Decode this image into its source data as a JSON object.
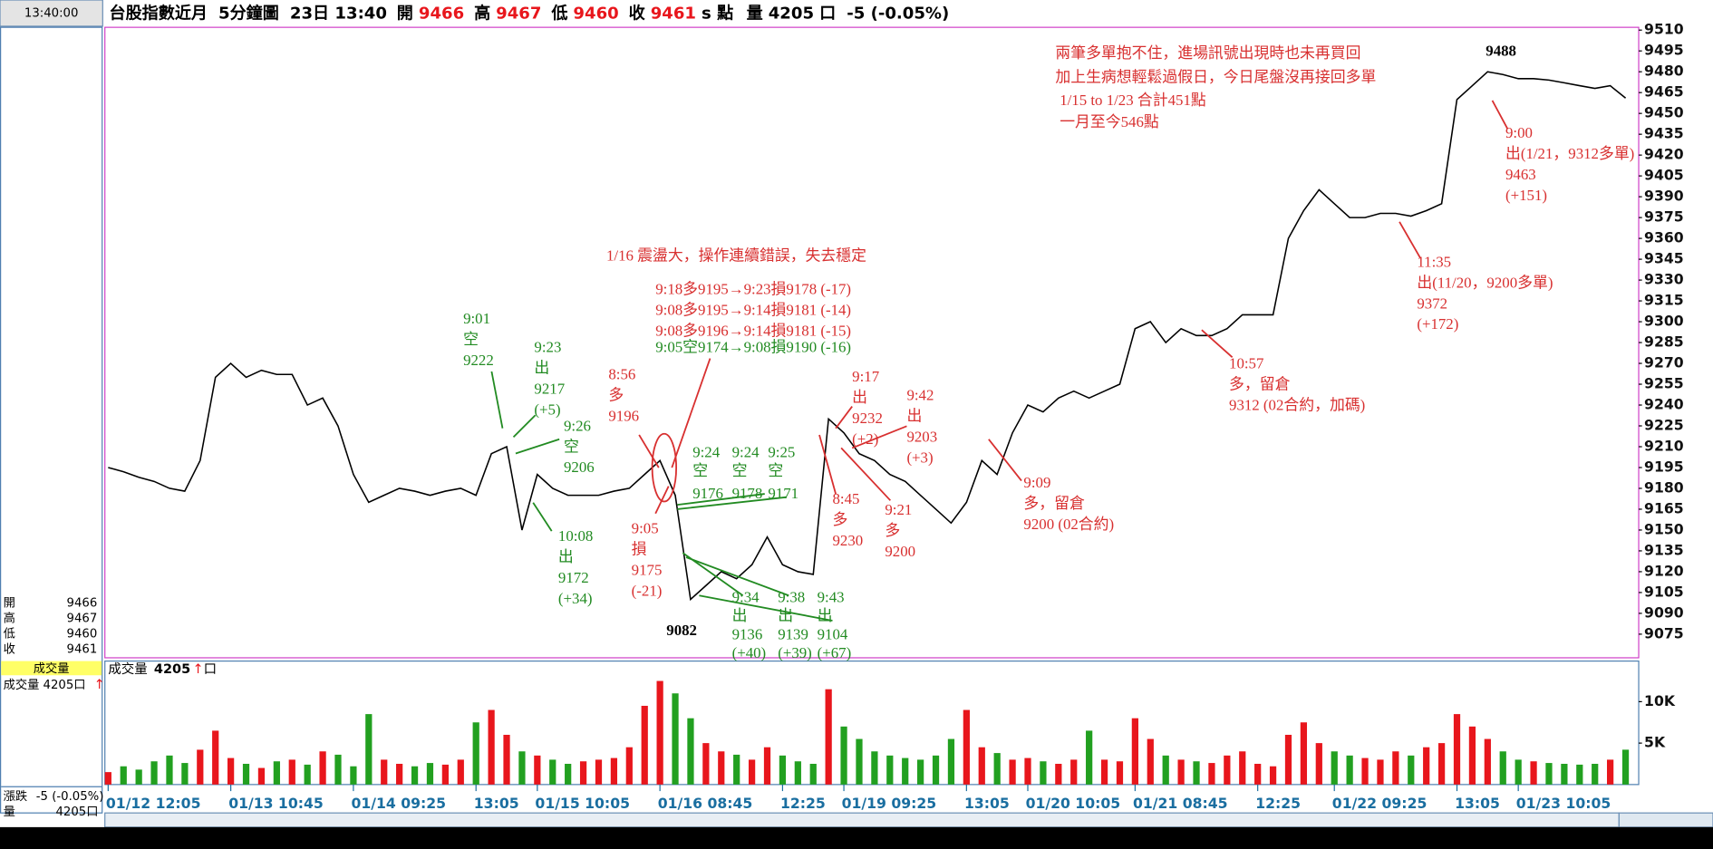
{
  "header": {
    "clock": "13:40:00",
    "title": "台股指數近月",
    "interval": "5分鐘圖",
    "time": "23日 13:40",
    "quotes": [
      {
        "label": "開",
        "value": "9466"
      },
      {
        "label": "高",
        "value": "9467"
      },
      {
        "label": "低",
        "value": "9460"
      },
      {
        "label": "收",
        "value": "9461"
      }
    ],
    "unit": "s 點",
    "volume": {
      "label": "量",
      "value": "4205",
      "unit": "口"
    },
    "change": "-5 (-0.05%)"
  },
  "side": {
    "ohlc": [
      [
        "開",
        "9466"
      ],
      [
        "高",
        "9467"
      ],
      [
        "低",
        "9460"
      ],
      [
        "收",
        "9461"
      ]
    ],
    "vol_title": "成交量",
    "vol_line": "成交量  4205口",
    "change_label": "漲跌",
    "change": "-5 (-0.05%)",
    "qty_label": "量",
    "qty": "4205口"
  },
  "volume_panel": {
    "label": "成交量",
    "value": "4205",
    "unit": "口"
  },
  "chart_data": [
    {
      "type": "line",
      "color": "#000000",
      "categories": [
        "01/12 12:05",
        null,
        null,
        null,
        null,
        null,
        null,
        null,
        "01/13 10:45",
        null,
        null,
        null,
        null,
        null,
        null,
        null,
        "01/14 09:25",
        null,
        null,
        null,
        null,
        null,
        null,
        null,
        "13:05",
        null,
        null,
        null,
        "01/15 10:05",
        null,
        null,
        null,
        null,
        null,
        null,
        null,
        "01/16 08:45",
        null,
        null,
        null,
        null,
        null,
        null,
        null,
        "12:25",
        null,
        null,
        null,
        "01/19 09:25",
        null,
        null,
        null,
        null,
        null,
        null,
        null,
        "13:05",
        null,
        null,
        null,
        "01/20 10:05",
        null,
        null,
        null,
        null,
        null,
        null,
        "01/21 08:45",
        null,
        null,
        null,
        null,
        null,
        null,
        null,
        "12:25",
        null,
        null,
        null,
        null,
        "01/22 09:25",
        null,
        null,
        null,
        null,
        null,
        null,
        null,
        "13:05",
        null,
        null,
        null,
        "01/23 10:05",
        null,
        null,
        null,
        null,
        null,
        null,
        null
      ],
      "values": [
        9195,
        9192,
        9188,
        9185,
        9180,
        9178,
        9200,
        9260,
        9270,
        9260,
        9265,
        9262,
        9262,
        9240,
        9245,
        9225,
        9190,
        9170,
        9175,
        9180,
        9178,
        9175,
        9178,
        9180,
        9175,
        9205,
        9210,
        9150,
        9190,
        9180,
        9175,
        9175,
        9175,
        9178,
        9180,
        9190,
        9200,
        9175,
        9100,
        9110,
        9120,
        9115,
        9125,
        9145,
        9125,
        9120,
        9118,
        9230,
        9220,
        9205,
        9200,
        9190,
        9185,
        9175,
        9165,
        9155,
        9170,
        9200,
        9190,
        9220,
        9240,
        9235,
        9245,
        9250,
        9245,
        9250,
        9255,
        9295,
        9300,
        9285,
        9295,
        9290,
        9290,
        9295,
        9305,
        9305,
        9305,
        9360,
        9380,
        9395,
        9385,
        9375,
        9375,
        9378,
        9378,
        9376,
        9380,
        9385,
        9460,
        9470,
        9480,
        9478,
        9475,
        9475,
        9474,
        9472,
        9470,
        9468,
        9470,
        9461
      ],
      "ylim": [
        9058,
        9512
      ],
      "yticks": [
        9075,
        9090,
        9105,
        9120,
        9135,
        9150,
        9165,
        9180,
        9195,
        9210,
        9225,
        9240,
        9255,
        9270,
        9285,
        9300,
        9315,
        9330,
        9345,
        9360,
        9375,
        9390,
        9405,
        9420,
        9435,
        9450,
        9465,
        9480,
        9495,
        9510
      ]
    },
    {
      "type": "bar",
      "up_color": "#e8161c",
      "down_color": "#22a020",
      "values": [
        1500,
        2200,
        1800,
        2800,
        3500,
        2600,
        4200,
        6500,
        3200,
        2500,
        2000,
        2800,
        3000,
        2400,
        4000,
        3600,
        2200,
        8500,
        3000,
        2500,
        2200,
        2600,
        2400,
        3000,
        7500,
        9000,
        6000,
        4000,
        3500,
        3000,
        2500,
        2800,
        3000,
        3200,
        4500,
        9500,
        12500,
        11000,
        8000,
        5000,
        4000,
        3600,
        3000,
        4500,
        3500,
        2800,
        2500,
        11500,
        7000,
        5500,
        4000,
        3500,
        3200,
        3000,
        3500,
        5500,
        9000,
        4500,
        3800,
        3000,
        3200,
        2800,
        2500,
        3000,
        6500,
        3000,
        2800,
        8000,
        5500,
        3500,
        3000,
        2800,
        2600,
        3500,
        4000,
        2500,
        2200,
        6000,
        7500,
        5000,
        4000,
        3500,
        3200,
        3000,
        4000,
        3500,
        4500,
        5000,
        8500,
        7000,
        5500,
        4000,
        3000,
        2800,
        2600,
        2500,
        2400,
        2500,
        3000,
        4205
      ],
      "ylim": [
        0,
        14900
      ],
      "yticks": [
        {
          "value": 5000,
          "label": "5K"
        },
        {
          "value": 10000,
          "label": "10K"
        }
      ]
    }
  ],
  "annotations": [
    {
      "color": "#d83030",
      "lines": [
        "兩筆多單抱不住，進場訊號出現時也未再買回",
        "加上生病想輕鬆過假日，今日尾盤沒再接回多單"
      ]
    },
    {
      "color": "#d83030",
      "lines": [
        "1/15 to 1/23 合計451點",
        "一月至今546點"
      ]
    },
    {
      "color": "#d83030",
      "lines": [
        "9:00",
        "出(1/21，9312多單)",
        "9463",
        "(+151)"
      ]
    },
    {
      "color": "#d83030",
      "lines": [
        "11:35",
        "出(11/20，9200多單)",
        "9372",
        "(+172)"
      ]
    },
    {
      "color": "#d83030",
      "lines": [
        "10:57",
        "多，留倉",
        "9312 (02合約，加碼)"
      ]
    },
    {
      "color": "#d83030",
      "lines": [
        "9:09",
        "多，留倉",
        "9200 (02合約)"
      ]
    },
    {
      "color": "#d83030",
      "lines": [
        "1/16 震盪大，操作連續錯誤，失去穩定"
      ]
    },
    {
      "color": "#d83030",
      "lines": [
        "9:18多9195→9:23損9178  (-17)",
        "9:08多9195→9:14損9181  (-14)",
        "9:08多9196→9:14損9181  (-15)"
      ]
    },
    {
      "color": "#228b22",
      "lines": [
        "9:05空9174→9:08損9190  (-16)"
      ]
    },
    {
      "color": "#d83030",
      "lines": [
        "8:56",
        "多",
        "9196"
      ]
    },
    {
      "color": "#d83030",
      "lines": [
        "9:05",
        "損",
        "9175",
        "(-21)"
      ]
    },
    {
      "color": "#d83030",
      "lines": [
        "9:17",
        "出",
        "9232",
        "(+2)"
      ]
    },
    {
      "color": "#d83030",
      "lines": [
        "9:42",
        "出",
        "9203",
        "(+3)"
      ]
    },
    {
      "color": "#d83030",
      "lines": [
        "8:45",
        "多",
        "9230"
      ]
    },
    {
      "color": "#d83030",
      "lines": [
        "9:21",
        "多",
        "9200"
      ]
    },
    {
      "color": "#228b22",
      "lines": [
        "9:01",
        "空",
        "9222"
      ]
    },
    {
      "color": "#228b22",
      "lines": [
        "9:23",
        "出",
        "9217",
        "(+5)"
      ]
    },
    {
      "color": "#228b22",
      "lines": [
        "9:26",
        "空",
        "9206"
      ]
    },
    {
      "color": "#228b22",
      "lines": [
        "10:08",
        "出",
        "9172",
        "(+34)"
      ]
    },
    {
      "color": "#228b22",
      "lines": [
        "9:24",
        "空"
      ]
    },
    {
      "color": "#228b22",
      "lines": [
        "9:24",
        "空"
      ]
    },
    {
      "color": "#228b22",
      "lines": [
        "9:25",
        "空"
      ]
    },
    {
      "color": "#228b22",
      "lines": [
        "9176"
      ]
    },
    {
      "color": "#228b22",
      "lines": [
        "9178"
      ]
    },
    {
      "color": "#228b22",
      "lines": [
        "9171"
      ]
    },
    {
      "color": "#228b22",
      "lines": [
        "9:34",
        "出",
        "9136",
        "(+40)"
      ]
    },
    {
      "color": "#228b22",
      "lines": [
        "9:38",
        "出",
        "9139",
        "(+39)"
      ]
    },
    {
      "color": "#228b22",
      "lines": [
        "9:43",
        "出",
        "9104",
        "(+67)"
      ]
    },
    {
      "color": "#000000",
      "lines": [
        "9082"
      ]
    },
    {
      "color": "#000000",
      "lines": [
        "9488"
      ]
    }
  ]
}
